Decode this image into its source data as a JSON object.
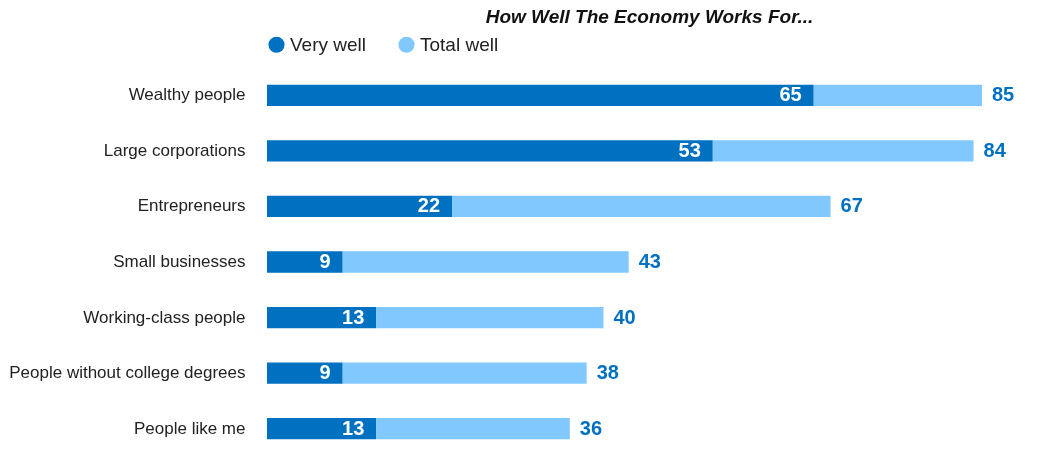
{
  "chart_data": {
    "type": "bar",
    "orientation": "horizontal",
    "stacked": true,
    "title": "How Well The Economy Works For...",
    "categories": [
      "Wealthy people",
      "Large corporations",
      "Entrepreneurs",
      "Small businesses",
      "Working-class people",
      "People without college degrees",
      "People like me"
    ],
    "series": [
      {
        "name": "Very well",
        "color": "#0070c0",
        "values": [
          65,
          53,
          22,
          9,
          13,
          9,
          13
        ],
        "value_labels": [
          "65",
          "53",
          "22",
          "9",
          "13",
          "9",
          "13"
        ]
      },
      {
        "name": "Total well",
        "color": "#80c8ff",
        "values": [
          20,
          31,
          45,
          34,
          27,
          29,
          23
        ]
      }
    ],
    "totals": [
      "85",
      "84",
      "67",
      "43",
      "40",
      "38",
      "36"
    ],
    "legend": "top",
    "grid": false
  }
}
